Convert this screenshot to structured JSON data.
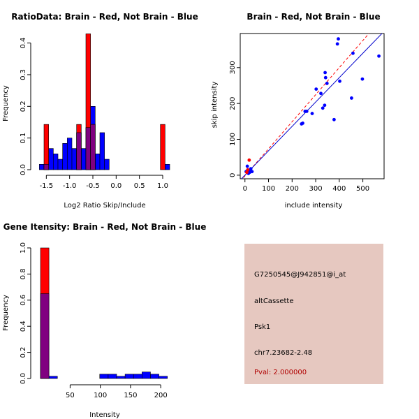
{
  "colors": {
    "red": "#ff0000",
    "blue": "#0000ff",
    "purple": "#800080",
    "info_bg": "#e6c8c0",
    "pval": "#b00000",
    "red_line": "#ff0000",
    "blue_line": "#0000cc"
  },
  "chart_data": [
    {
      "id": "ratio",
      "type": "bar",
      "title": "RatioData: Brain - Red, Not Brain - Blue",
      "xlabel": "Log2 Ratio Skip/Include",
      "ylabel": "Frequency",
      "xlim": [
        -1.7,
        1.3
      ],
      "ylim": [
        0,
        0.43
      ],
      "xticks": [
        -1.5,
        -1.0,
        -0.5,
        0.0,
        0.5,
        1.0
      ],
      "xtick_labels": [
        "-1.5",
        "-1.0",
        "-0.5",
        "0.0",
        "0.5",
        "1.0"
      ],
      "yticks": [
        0,
        0.1,
        0.2,
        0.3,
        0.4
      ],
      "ytick_labels": [
        "0.0",
        "0.1",
        "0.2",
        "0.3",
        "0.4"
      ],
      "series": [
        {
          "name": "Not Brain",
          "color": "blue",
          "bins": [
            {
              "x0": -1.65,
              "x1": -1.55,
              "v": 0.017
            },
            {
              "x0": -1.55,
              "x1": -1.45,
              "v": 0.017
            },
            {
              "x0": -1.45,
              "x1": -1.35,
              "v": 0.067
            },
            {
              "x0": -1.35,
              "x1": -1.25,
              "v": 0.05
            },
            {
              "x0": -1.25,
              "x1": -1.15,
              "v": 0.033
            },
            {
              "x0": -1.15,
              "x1": -1.05,
              "v": 0.083
            },
            {
              "x0": -1.05,
              "x1": -0.95,
              "v": 0.1
            },
            {
              "x0": -0.95,
              "x1": -0.85,
              "v": 0.067
            },
            {
              "x0": -0.85,
              "x1": -0.75,
              "v": 0.117
            },
            {
              "x0": -0.75,
              "x1": -0.65,
              "v": 0.067
            },
            {
              "x0": -0.65,
              "x1": -0.55,
              "v": 0.133
            },
            {
              "x0": -0.55,
              "x1": -0.45,
              "v": 0.2
            },
            {
              "x0": -0.45,
              "x1": -0.35,
              "v": 0.05
            },
            {
              "x0": -0.35,
              "x1": -0.25,
              "v": 0.117
            },
            {
              "x0": -0.25,
              "x1": -0.15,
              "v": 0.033
            },
            {
              "x0": 1.05,
              "x1": 1.15,
              "v": 0.017
            }
          ]
        },
        {
          "name": "Brain",
          "color": "red",
          "bins": [
            {
              "x0": -1.55,
              "x1": -1.45,
              "v": 0.143
            },
            {
              "x0": -0.85,
              "x1": -0.75,
              "v": 0.143
            },
            {
              "x0": -0.65,
              "x1": -0.55,
              "v": 0.429
            },
            {
              "x0": -0.55,
              "x1": -0.45,
              "v": 0.143
            },
            {
              "x0": 0.95,
              "x1": 1.05,
              "v": 0.143
            }
          ]
        }
      ]
    },
    {
      "id": "scatter",
      "type": "scatter",
      "title": "Brain - Red, Not Brain - Blue",
      "xlabel": "include intensity",
      "ylabel": "skip intensity",
      "xlim": [
        -20,
        590
      ],
      "ylim": [
        -10,
        395
      ],
      "xticks": [
        0,
        100,
        200,
        300,
        400,
        500
      ],
      "yticks": [
        0,
        100,
        200,
        300
      ],
      "lines": [
        {
          "name": "red-fit",
          "color": "red",
          "dashed": true,
          "slope": 0.755,
          "intercept": -2
        },
        {
          "name": "blue-fit",
          "color": "blue",
          "dashed": false,
          "slope": 0.68,
          "intercept": 0
        }
      ],
      "series": [
        {
          "name": "Not Brain",
          "color": "blue",
          "points": [
            [
              5,
              10
            ],
            [
              10,
              25
            ],
            [
              12,
              15
            ],
            [
              15,
              5
            ],
            [
              18,
              12
            ],
            [
              20,
              8
            ],
            [
              25,
              18
            ],
            [
              30,
              10
            ],
            [
              240,
              143
            ],
            [
              245,
              145
            ],
            [
              255,
              178
            ],
            [
              262,
              178
            ],
            [
              285,
              172
            ],
            [
              302,
              240
            ],
            [
              322,
              228
            ],
            [
              330,
              187
            ],
            [
              338,
              195
            ],
            [
              340,
              286
            ],
            [
              342,
              272
            ],
            [
              348,
              256
            ],
            [
              378,
              155
            ],
            [
              392,
              366
            ],
            [
              396,
              380
            ],
            [
              402,
              262
            ],
            [
              452,
              215
            ],
            [
              458,
              340
            ],
            [
              498,
              268
            ],
            [
              568,
              332
            ]
          ]
        },
        {
          "name": "Brain",
          "color": "red",
          "points": [
            [
              8,
              8
            ],
            [
              12,
              15
            ],
            [
              18,
              42
            ]
          ]
        }
      ]
    },
    {
      "id": "intensity",
      "type": "bar",
      "title": "Gene Itensity: Brain - Red, Not Brain - Blue",
      "xlabel": "Intensity",
      "ylabel": "Frequency",
      "xlim": [
        1,
        216
      ],
      "ylim": [
        0,
        1.0
      ],
      "xticks": [
        50,
        100,
        150,
        200
      ],
      "xtick_labels": [
        "50",
        "100",
        "150",
        "200"
      ],
      "yticks": [
        0,
        0.2,
        0.4,
        0.6,
        0.8,
        1.0
      ],
      "ytick_labels": [
        "0.0",
        "0.2",
        "0.4",
        "0.6",
        "0.8",
        "1.0"
      ],
      "series": [
        {
          "name": "Not Brain",
          "color": "blue",
          "bins": [
            {
              "x0": 1,
              "x1": 15,
              "v": 0.65
            },
            {
              "x0": 15,
              "x1": 29,
              "v": 0.017
            },
            {
              "x0": 99,
              "x1": 113,
              "v": 0.033
            },
            {
              "x0": 113,
              "x1": 127,
              "v": 0.033
            },
            {
              "x0": 127,
              "x1": 141,
              "v": 0.017
            },
            {
              "x0": 141,
              "x1": 155,
              "v": 0.033
            },
            {
              "x0": 155,
              "x1": 169,
              "v": 0.033
            },
            {
              "x0": 169,
              "x1": 183,
              "v": 0.05
            },
            {
              "x0": 183,
              "x1": 197,
              "v": 0.033
            },
            {
              "x0": 197,
              "x1": 211,
              "v": 0.017
            }
          ]
        },
        {
          "name": "Brain",
          "color": "red",
          "bins": [
            {
              "x0": 1,
              "x1": 15,
              "v": 1.0
            }
          ]
        }
      ]
    }
  ],
  "info": {
    "probe_id": "G7250545@J942851@i_at",
    "event_type": "altCassette",
    "gene": "Psk1",
    "location": "chr7.23682-2.48",
    "pval": "Pval: 2.000000"
  }
}
